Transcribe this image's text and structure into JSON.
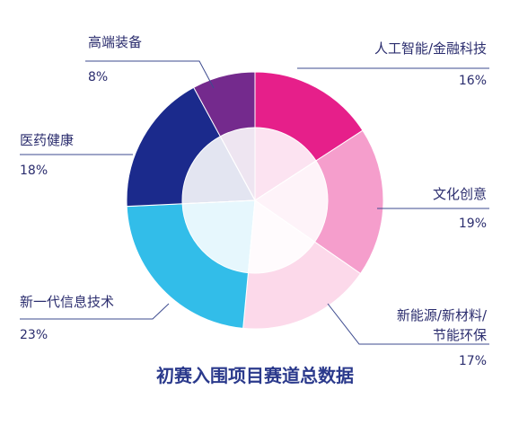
{
  "chart_data": {
    "type": "pie",
    "variant": "donut",
    "title": "初赛入围项目赛道总数据",
    "slices": [
      {
        "name": "人工智能/金融科技",
        "value": 16,
        "label": "16%",
        "color": "#e61f8a"
      },
      {
        "name": "文化创意",
        "value": 19,
        "label": "19%",
        "color": "#f59ecc"
      },
      {
        "name": "新能源/新材料/节能环保",
        "name_lines": [
          "新能源/新材料/",
          "节能环保"
        ],
        "value": 17,
        "label": "17%",
        "color": "#fcd9ea"
      },
      {
        "name": "新一代信息技术",
        "value": 23,
        "label": "23%",
        "color": "#32bde9"
      },
      {
        "name": "医药健康",
        "value": 18,
        "label": "18%",
        "color": "#1b2a8c"
      },
      {
        "name": "高端装备",
        "value": 8,
        "label": "8%",
        "color": "#742a8d"
      }
    ]
  }
}
